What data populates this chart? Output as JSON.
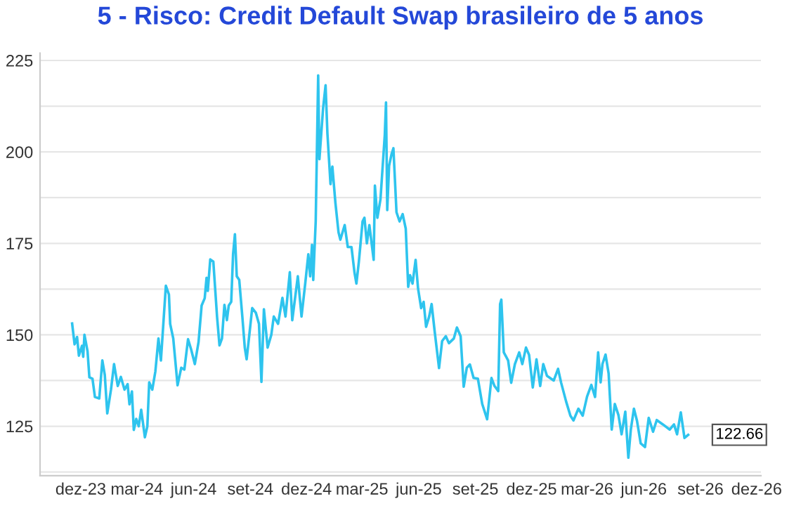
{
  "chart_data": {
    "type": "line",
    "title": "5 - Risco: Credit Default Swap brasileiro de 5 anos",
    "x": [
      "2023-11-17",
      "2023-11-21",
      "2023-11-25",
      "2023-11-28",
      "2023-12-03",
      "2023-12-05",
      "2023-12-07",
      "2023-12-12",
      "2023-12-15",
      "2023-12-20",
      "2023-12-24",
      "2023-12-31",
      "2024-01-05",
      "2024-01-09",
      "2024-01-13",
      "2024-01-19",
      "2024-01-24",
      "2024-01-30",
      "2024-02-04",
      "2024-02-10",
      "2024-02-15",
      "2024-02-18",
      "2024-02-22",
      "2024-02-25",
      "2024-02-29",
      "2024-03-04",
      "2024-03-08",
      "2024-03-14",
      "2024-03-18",
      "2024-03-21",
      "2024-03-26",
      "2024-03-31",
      "2024-04-05",
      "2024-04-09",
      "2024-04-17",
      "2024-04-22",
      "2024-04-24",
      "2024-04-29",
      "2024-05-06",
      "2024-05-12",
      "2024-05-17",
      "2024-05-23",
      "2024-05-28",
      "2024-06-03",
      "2024-06-09",
      "2024-06-14",
      "2024-06-19",
      "2024-06-22",
      "2024-06-24",
      "2024-06-28",
      "2024-07-03",
      "2024-07-09",
      "2024-07-13",
      "2024-07-17",
      "2024-07-21",
      "2024-07-25",
      "2024-07-28",
      "2024-08-01",
      "2024-08-04",
      "2024-08-07",
      "2024-08-10",
      "2024-08-14",
      "2024-08-19",
      "2024-08-23",
      "2024-08-26",
      "2024-08-31",
      "2024-09-04",
      "2024-09-10",
      "2024-09-15",
      "2024-09-19",
      "2024-09-23",
      "2024-09-29",
      "2024-10-05",
      "2024-10-09",
      "2024-10-16",
      "2024-10-23",
      "2024-10-28",
      "2024-11-04",
      "2024-11-08",
      "2024-11-11",
      "2024-11-17",
      "2024-11-23",
      "2024-11-29",
      "2024-12-04",
      "2024-12-07",
      "2024-12-10",
      "2024-12-12",
      "2024-12-16",
      "2024-12-20",
      "2024-12-22",
      "2024-12-25",
      "2024-12-28",
      "2025-01-01",
      "2025-01-04",
      "2025-01-09",
      "2025-01-12",
      "2025-01-17",
      "2025-01-22",
      "2025-01-25",
      "2025-02-01",
      "2025-02-06",
      "2025-02-12",
      "2025-02-17",
      "2025-02-20",
      "2025-02-24",
      "2025-03-02",
      "2025-03-05",
      "2025-03-09",
      "2025-03-13",
      "2025-03-20",
      "2025-03-22",
      "2025-03-26",
      "2025-03-31",
      "2025-04-07",
      "2025-04-09",
      "2025-04-11",
      "2025-04-14",
      "2025-04-18",
      "2025-04-21",
      "2025-04-26",
      "2025-05-01",
      "2025-05-06",
      "2025-05-11",
      "2025-05-15",
      "2025-05-18",
      "2025-05-22",
      "2025-05-27",
      "2025-05-31",
      "2025-06-05",
      "2025-06-09",
      "2025-06-13",
      "2025-06-18",
      "2025-06-22",
      "2025-06-27",
      "2025-07-04",
      "2025-07-09",
      "2025-07-15",
      "2025-07-20",
      "2025-07-28",
      "2025-08-02",
      "2025-08-08",
      "2025-08-13",
      "2025-08-18",
      "2025-08-23",
      "2025-08-29",
      "2025-09-05",
      "2025-09-12",
      "2025-09-20",
      "2025-09-27",
      "2025-10-02",
      "2025-10-08",
      "2025-10-11",
      "2025-10-13",
      "2025-10-17",
      "2025-10-24",
      "2025-10-29",
      "2025-11-04",
      "2025-11-11",
      "2025-11-16",
      "2025-11-22",
      "2025-11-27",
      "2025-12-03",
      "2025-12-09",
      "2025-12-15",
      "2025-12-20",
      "2025-12-26",
      "2026-01-06",
      "2026-01-13",
      "2026-01-18",
      "2026-01-26",
      "2026-02-02",
      "2026-02-07",
      "2026-02-15",
      "2026-02-22",
      "2026-03-01",
      "2026-03-08",
      "2026-03-14",
      "2026-03-19",
      "2026-03-23",
      "2026-03-26",
      "2026-03-31",
      "2026-04-05",
      "2026-04-10",
      "2026-04-15",
      "2026-04-21",
      "2026-04-26",
      "2026-05-02",
      "2026-05-07",
      "2026-05-11",
      "2026-05-16",
      "2026-05-21",
      "2026-05-27",
      "2026-06-03",
      "2026-06-09",
      "2026-06-16",
      "2026-06-22",
      "2026-07-02",
      "2026-07-13",
      "2026-07-20",
      "2026-07-25",
      "2026-07-31",
      "2026-08-06",
      "2026-08-12"
    ],
    "series": [
      {
        "color": "#2ec4ee",
        "values": [
          153.1,
          147.4,
          149.4,
          144.3,
          147,
          144,
          150,
          145.5,
          138.4,
          138,
          133,
          132.6,
          143,
          139,
          128.5,
          135,
          142,
          136,
          138.5,
          135,
          136.5,
          131,
          134.5,
          124,
          127,
          125,
          129.5,
          122,
          125,
          137,
          135,
          140,
          149,
          143,
          163.4,
          161,
          153,
          149,
          136.2,
          141,
          140.5,
          148.8,
          146,
          142,
          148,
          158,
          160,
          165.6,
          162,
          170.6,
          170,
          155,
          147.1,
          149,
          158.2,
          154,
          158,
          159,
          172,
          177.5,
          166,
          165,
          155,
          146.5,
          143.3,
          151,
          157.3,
          156,
          153,
          137.1,
          157,
          146.5,
          150,
          155,
          153,
          160.1,
          155,
          167.1,
          154,
          158,
          166,
          155,
          164,
          172,
          166,
          174.6,
          165,
          181,
          220.9,
          198,
          205,
          212,
          218.2,
          205,
          191.2,
          196,
          186,
          178,
          176,
          180,
          174,
          174,
          166.9,
          164,
          170,
          181,
          182,
          175,
          180,
          170.5,
          190.8,
          182,
          187,
          204.6,
          213.5,
          184.1,
          196.2,
          199.4,
          201,
          183.5,
          181,
          183,
          179,
          163.1,
          166.3,
          164,
          170.5,
          162.6,
          157.3,
          159,
          152.2,
          155,
          158.4,
          150.8,
          140.9,
          148.3,
          149.6,
          147.7,
          149,
          152,
          149.6,
          135.8,
          141,
          141.9,
          138.2,
          138,
          131.1,
          126.9,
          138.2,
          136,
          134.6,
          158.4,
          159.6,
          145.2,
          143,
          136.9,
          142,
          145.2,
          142,
          146.5,
          144.5,
          135.6,
          143.3,
          136,
          142,
          138.8,
          137.5,
          140.7,
          136.9,
          131.8,
          127.9,
          126.6,
          129.8,
          127.9,
          133.1,
          136.3,
          133,
          145.2,
          137,
          142,
          144.6,
          139.4,
          124.1,
          131.1,
          128,
          122.8,
          129,
          116.4,
          124.1,
          129.8,
          126.5,
          120.3,
          119.3,
          127.3,
          123.5,
          126.7,
          125.5,
          124.1,
          125.5,
          122.8,
          128.8,
          121.8,
          122.66
        ]
      }
    ],
    "xlim": [
      "2023-09-26",
      "2026-12-08"
    ],
    "xticks": [
      {
        "value": "2023-12-01",
        "label": "dez-23"
      },
      {
        "value": "2024-03-01",
        "label": "mar-24"
      },
      {
        "value": "2024-06-01",
        "label": "jun-24"
      },
      {
        "value": "2024-09-01",
        "label": "set-24"
      },
      {
        "value": "2024-12-01",
        "label": "dez-24"
      },
      {
        "value": "2025-03-01",
        "label": "mar-25"
      },
      {
        "value": "2025-06-01",
        "label": "jun-25"
      },
      {
        "value": "2025-09-01",
        "label": "set-25"
      },
      {
        "value": "2025-12-01",
        "label": "dez-25"
      },
      {
        "value": "2026-03-01",
        "label": "mar-26"
      },
      {
        "value": "2026-06-01",
        "label": "jun-26"
      },
      {
        "value": "2026-09-01",
        "label": "set-26"
      },
      {
        "value": "2026-12-01",
        "label": "dez-26"
      }
    ],
    "ylim": [
      111.5,
      227
    ],
    "yticks": [
      {
        "value": 112.5,
        "label": null
      },
      125,
      {
        "value": 137.5,
        "label": null
      },
      150,
      {
        "value": 162.5,
        "label": null
      },
      175,
      {
        "value": 187.5,
        "label": null
      },
      200,
      {
        "value": 212.5,
        "label": null
      },
      225
    ],
    "grid": "y",
    "annotations": [
      {
        "text": "122.66",
        "x": "2026-08-12",
        "y": 122.66
      }
    ]
  }
}
